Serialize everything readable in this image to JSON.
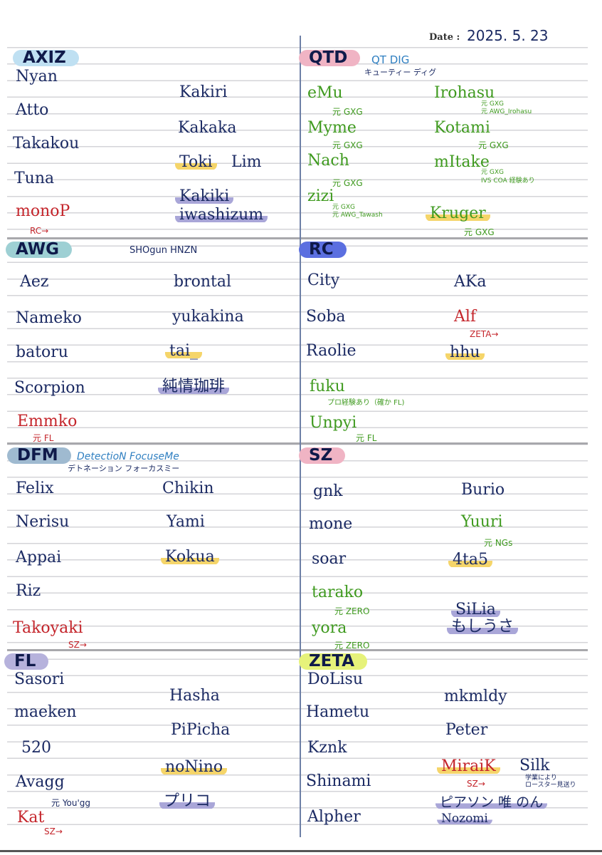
{
  "date": {
    "label": "Date :",
    "value": "2025. 5. 23"
  },
  "teams": [
    {
      "name": "AXIZ",
      "players": [
        {
          "name": "Nyan"
        },
        {
          "name": "Atto"
        },
        {
          "name": "Takakou"
        },
        {
          "name": "Tuna"
        },
        {
          "name": "monoP",
          "notes": [
            "RC→"
          ]
        },
        {
          "name": "Kakiri"
        },
        {
          "name": "Kakaka"
        },
        {
          "name": "Toki"
        },
        {
          "name": "Lim"
        },
        {
          "name": "Kakiki"
        },
        {
          "name": "iwashizum"
        }
      ]
    },
    {
      "name": "QTD",
      "subtitles": [
        "QT DIG",
        "キューティー ディグ"
      ],
      "players": [
        {
          "name": "eMu",
          "notes": [
            "元 GXG"
          ]
        },
        {
          "name": "Myme",
          "notes": [
            "元 GXG"
          ]
        },
        {
          "name": "Nach",
          "notes": [
            "元 GXG"
          ]
        },
        {
          "name": "zizi",
          "notes": [
            "元 GXG",
            "元 AWG_Tawash"
          ]
        },
        {
          "name": "Irohasu",
          "notes": [
            "元 GXG",
            "元 AWG_Irohasu"
          ]
        },
        {
          "name": "Kotami",
          "notes": [
            "元 GXG"
          ]
        },
        {
          "name": "mItake",
          "notes": [
            "元 GXG",
            "IVS COA 経験あり"
          ]
        },
        {
          "name": "Kruger",
          "notes": [
            "元 GXG"
          ]
        }
      ]
    },
    {
      "name": "AWG",
      "subtitles": [
        "SHOgun  HNZN"
      ],
      "players": [
        {
          "name": "Aez"
        },
        {
          "name": "Nameko"
        },
        {
          "name": "batoru"
        },
        {
          "name": "Scorpion"
        },
        {
          "name": "Emmko",
          "notes": [
            "元 FL"
          ]
        },
        {
          "name": "brontal"
        },
        {
          "name": "yukakina"
        },
        {
          "name": "tai_"
        },
        {
          "name": "純情珈琲"
        }
      ]
    },
    {
      "name": "RC",
      "players": [
        {
          "name": "City"
        },
        {
          "name": "Soba"
        },
        {
          "name": "Raolie"
        },
        {
          "name": "fuku",
          "notes": [
            "プロ経験あり（確か FL)"
          ]
        },
        {
          "name": "Unpyi",
          "notes": [
            "元 FL"
          ]
        },
        {
          "name": "AKa"
        },
        {
          "name": "Alf",
          "notes": [
            "ZETA→"
          ]
        },
        {
          "name": "hhu"
        }
      ]
    },
    {
      "name": "DFM",
      "subtitles": [
        "DetectioN FocuseMe",
        "デトネーション フォーカスミー"
      ],
      "players": [
        {
          "name": "Felix"
        },
        {
          "name": "Nerisu"
        },
        {
          "name": "Appai"
        },
        {
          "name": "Riz"
        },
        {
          "name": "Takoyaki",
          "notes": [
            "SZ→"
          ]
        },
        {
          "name": "Chikin"
        },
        {
          "name": "Yami"
        },
        {
          "name": "Kokua"
        }
      ]
    },
    {
      "name": "SZ",
      "players": [
        {
          "name": "gnk"
        },
        {
          "name": "mone"
        },
        {
          "name": "soar"
        },
        {
          "name": "tarako",
          "notes": [
            "元 ZERO"
          ]
        },
        {
          "name": "yora",
          "notes": [
            "元 ZERO"
          ]
        },
        {
          "name": "Burio"
        },
        {
          "name": "Yuuri",
          "notes": [
            "元 NGs"
          ]
        },
        {
          "name": "4ta5"
        },
        {
          "name": "SiLia"
        },
        {
          "name": "もしうさ"
        }
      ]
    },
    {
      "name": "FL",
      "players": [
        {
          "name": "Sasori"
        },
        {
          "name": "maeken"
        },
        {
          "name": "520"
        },
        {
          "name": "Avagg",
          "notes": [
            "元 You'gg"
          ]
        },
        {
          "name": "Kat",
          "notes": [
            "SZ→"
          ]
        },
        {
          "name": "Hasha"
        },
        {
          "name": "PiPicha"
        },
        {
          "name": "noNino"
        },
        {
          "name": "プリコ"
        }
      ]
    },
    {
      "name": "ZETA",
      "players": [
        {
          "name": "DoLisu"
        },
        {
          "name": "Hametu"
        },
        {
          "name": "Kznk"
        },
        {
          "name": "Shinami"
        },
        {
          "name": "Alpher"
        },
        {
          "name": "mkmldy"
        },
        {
          "name": "Peter"
        },
        {
          "name": "MiraiK",
          "notes": [
            "SZ→"
          ]
        },
        {
          "name": "Silk",
          "notes": [
            "学業により",
            "ロースター見送り"
          ]
        },
        {
          "name": "ピアソン 唯 のん"
        },
        {
          "name": "Nozomi"
        }
      ]
    }
  ]
}
